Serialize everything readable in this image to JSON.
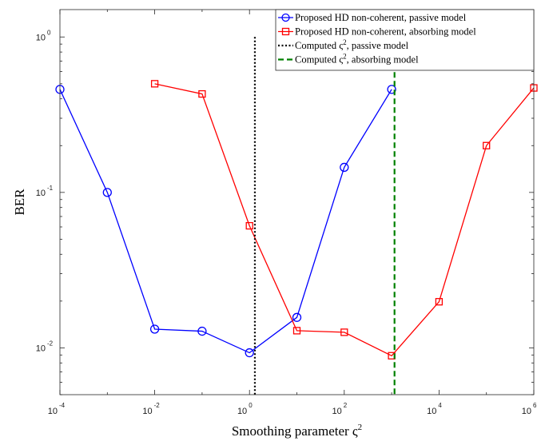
{
  "chart_data": {
    "type": "line",
    "title": "",
    "xlabel": "Smoothing parameter ς",
    "xlabel_sup": "2",
    "ylabel": "BER",
    "xscale": "log",
    "yscale": "log",
    "xlim": [
      0.0001,
      1000000
    ],
    "ylim": [
      0.005,
      1.5
    ],
    "x_ticks": [
      {
        "base": "10",
        "exp": "-4",
        "value": 0.0001
      },
      {
        "base": "10",
        "exp": "-2",
        "value": 0.01
      },
      {
        "base": "10",
        "exp": "0",
        "value": 1
      },
      {
        "base": "10",
        "exp": "2",
        "value": 100
      },
      {
        "base": "10",
        "exp": "4",
        "value": 10000
      },
      {
        "base": "10",
        "exp": "6",
        "value": 1000000
      }
    ],
    "y_ticks": [
      {
        "base": "10",
        "exp": "0",
        "value": 1
      },
      {
        "base": "10",
        "exp": "-1",
        "value": 0.1
      },
      {
        "base": "10",
        "exp": "-2",
        "value": 0.01
      }
    ],
    "grid": false,
    "legend_position": "top-right",
    "series": [
      {
        "name": "Proposed HD non-coherent, passive model",
        "color": "#0000ff",
        "marker": "circle",
        "linestyle": "solid",
        "x": [
          0.0001,
          0.001,
          0.01,
          0.1,
          1,
          10,
          100,
          1000
        ],
        "y": [
          0.46,
          0.1,
          0.0132,
          0.0128,
          0.0093,
          0.0157,
          0.145,
          0.46
        ]
      },
      {
        "name": "Proposed HD non-coherent, absorbing model",
        "color": "#ff0000",
        "marker": "square",
        "linestyle": "solid",
        "x": [
          0.01,
          0.1,
          1,
          10,
          100,
          1000,
          10000,
          100000,
          1000000
        ],
        "y": [
          0.5,
          0.43,
          0.061,
          0.0129,
          0.0126,
          0.0089,
          0.0198,
          0.2,
          0.47
        ]
      },
      {
        "name": "Computed ς",
        "name_sup": "2",
        "name_suffix": ", passive model",
        "color": "#000000",
        "marker": "none",
        "linestyle": "dotted",
        "x": [
          1.3,
          1.3
        ],
        "y": [
          1,
          0.005
        ]
      },
      {
        "name": "Computed ς",
        "name_sup": "2",
        "name_suffix": ", absorbing model",
        "color": "#008000",
        "marker": "none",
        "linestyle": "dashed",
        "x": [
          1150,
          1150
        ],
        "y": [
          1,
          0.005
        ]
      }
    ]
  }
}
